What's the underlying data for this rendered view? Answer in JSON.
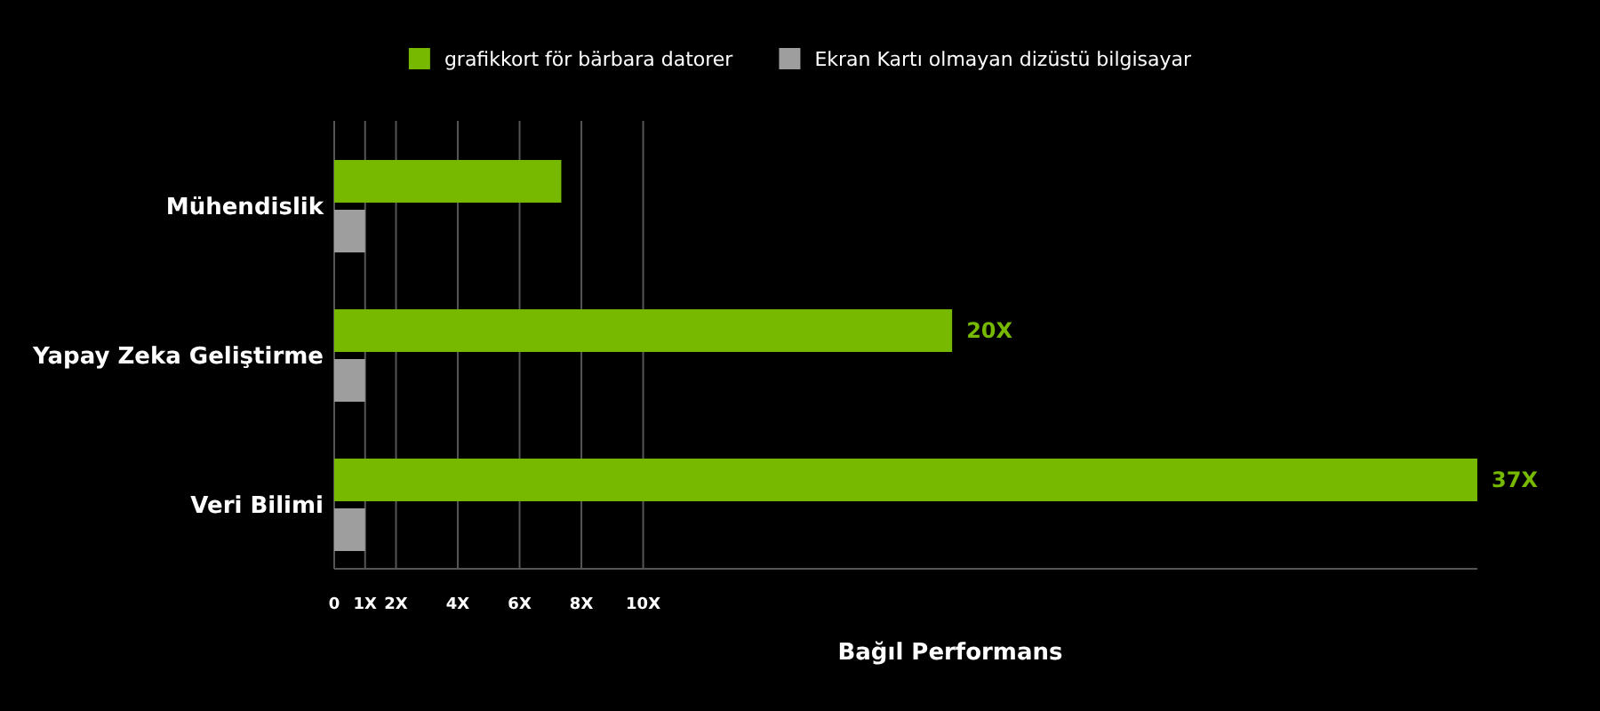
{
  "chart_data": {
    "type": "bar",
    "orientation": "horizontal",
    "categories": [
      "Mühendislik",
      "Yapay Zeka Geliştirme",
      "Veri Bilimi"
    ],
    "series": [
      {
        "name": "grafikkort för bärbara datorer",
        "color": "#76b900",
        "values": [
          7.35,
          20,
          37
        ],
        "value_labels": [
          null,
          "20X",
          "37X"
        ]
      },
      {
        "name": "Ekran Kartı olmayan dizüstü bilgisayar",
        "color": "#9e9e9e",
        "values": [
          1,
          1,
          1
        ]
      }
    ],
    "xlim": [
      0,
      37
    ],
    "xticks": [
      0,
      {
        "value": 1,
        "label": "1X"
      },
      {
        "value": 2,
        "label": "2X"
      },
      {
        "value": 4,
        "label": "4X"
      },
      {
        "value": 6,
        "label": "6X"
      },
      {
        "value": 8,
        "label": "8X"
      },
      {
        "value": 10,
        "label": "10X"
      }
    ],
    "xlabel": "Bağıl Performans",
    "grid": "x",
    "legend": "top"
  }
}
